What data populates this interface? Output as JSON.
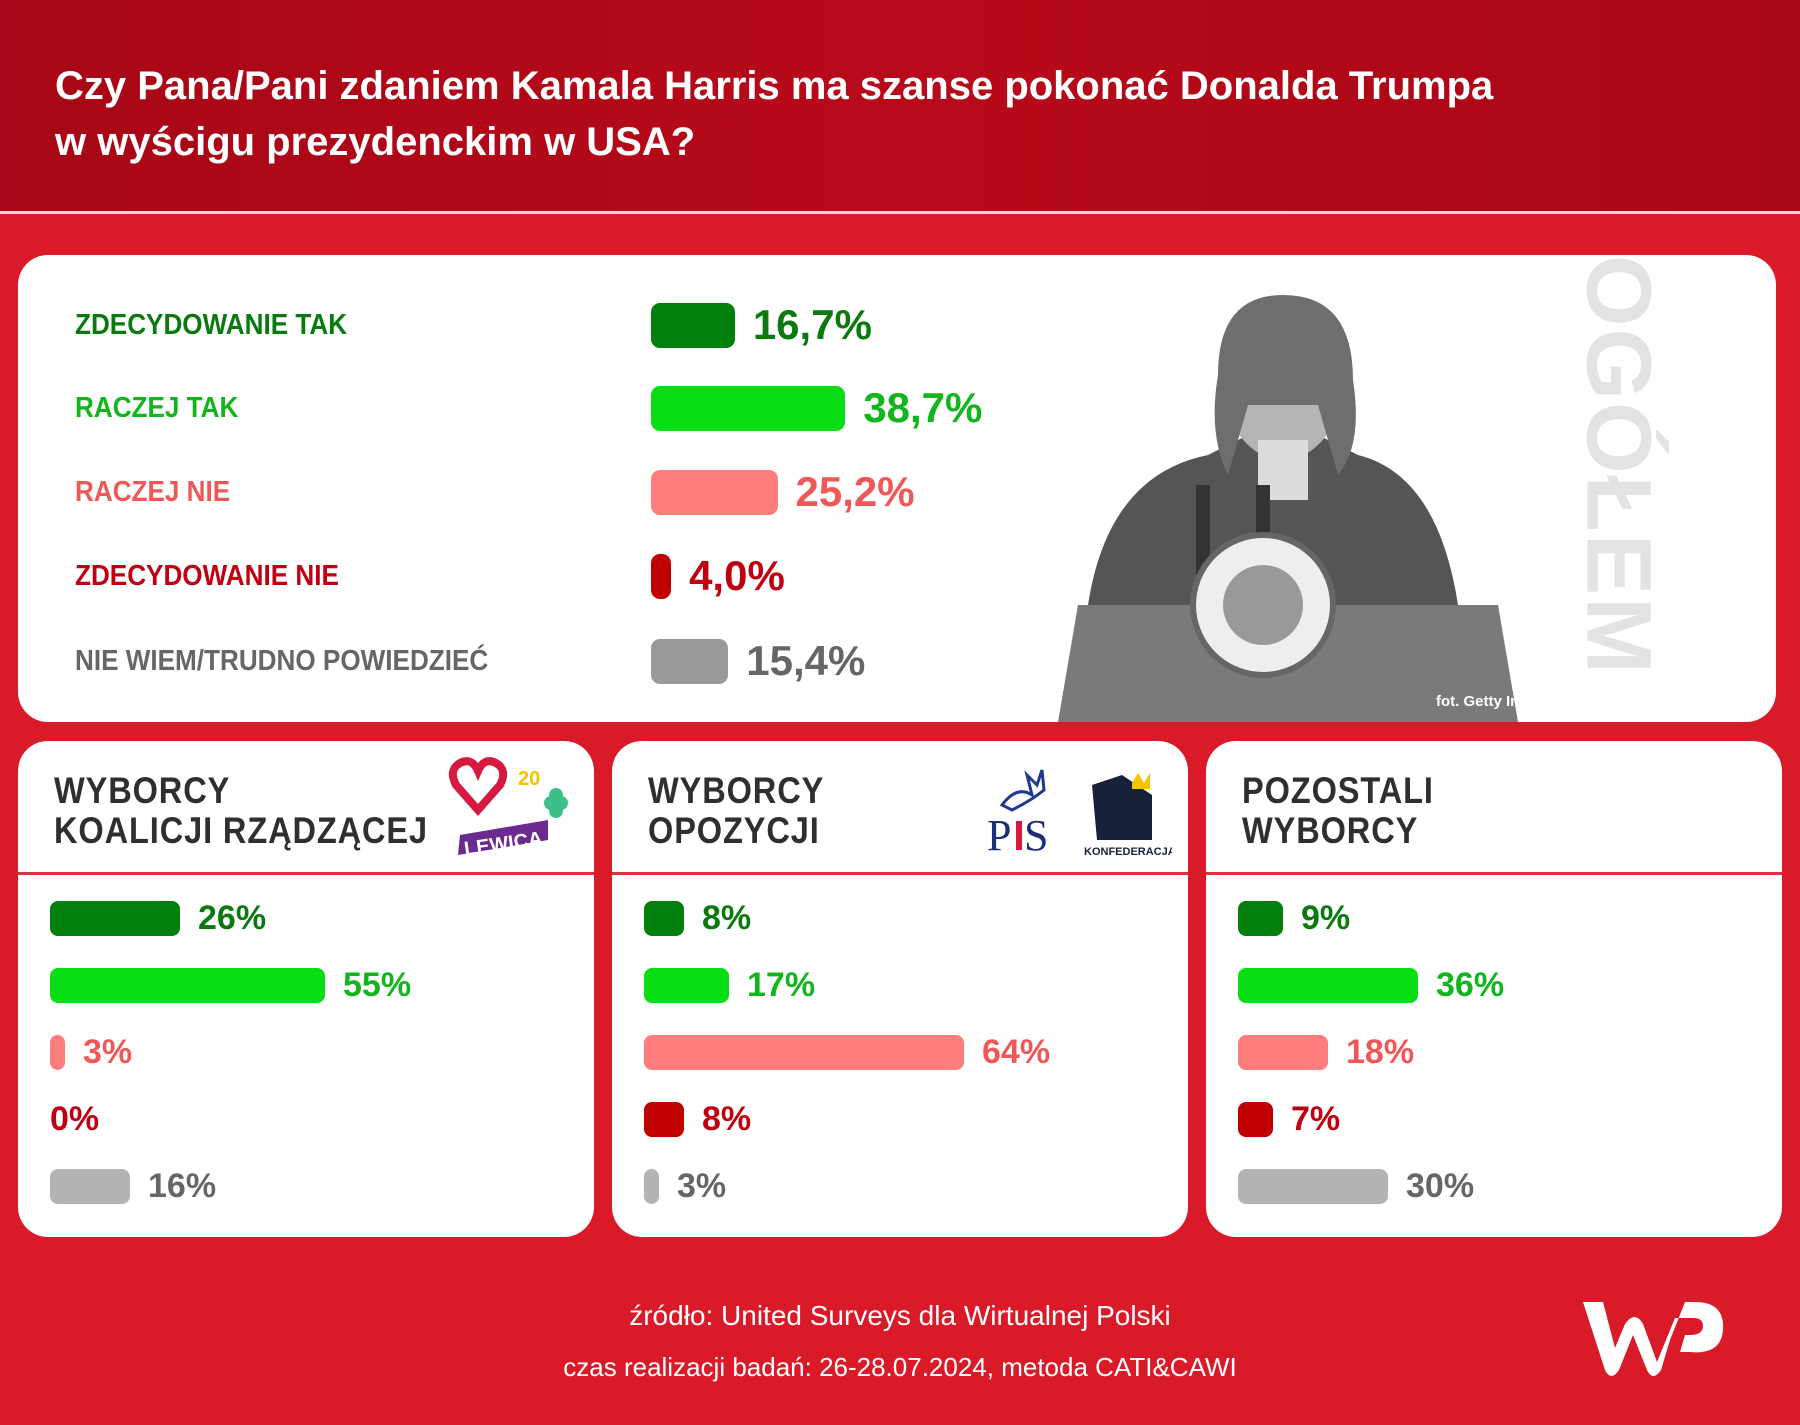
{
  "header": {
    "title_line1": "Czy Pana/Pani zdaniem Kamala Harris ma szanse pokonać Donalda Trumpa",
    "title_line2": "w wyścigu prezydenckim w USA?"
  },
  "top": {
    "side_label": "OGÓŁEM",
    "photo_credit": "fot. Getty Images"
  },
  "groups": [
    {
      "title_line1": "WYBORCY",
      "title_line2": "KOALICJI RZĄDZĄCEJ",
      "logo_text": "LEWICA"
    },
    {
      "title_line1": "WYBORCY",
      "title_line2": "OPOZYCJI",
      "logo_text": "PiS KONFEDERACJA"
    },
    {
      "title_line1": "POZOSTALI",
      "title_line2": "WYBORCY"
    }
  ],
  "footer": {
    "source": "źródło: United Surveys dla Wirtualnej Polski",
    "method": "czas realizacji badań: 26-28.07.2024, metoda CATI&CAWI",
    "logo_text": "WP"
  },
  "colors": {
    "bar": [
      "#037f0c",
      "#09dd14",
      "#ff7d7d",
      "#c00000",
      "#999999"
    ],
    "bar_small_gray": "#b4b4b4",
    "text": [
      "#0a7a0f",
      "#10b61b",
      "#f05858",
      "#c00010",
      "#666666"
    ],
    "background": "#d91b29",
    "header": "#b00a19"
  },
  "chart_data": [
    {
      "type": "bar",
      "orientation": "horizontal",
      "title": "OGÓŁEM",
      "categories": [
        "ZDECYDOWANIE TAK",
        "RACZEJ TAK",
        "RACZEJ NIE",
        "ZDECYDOWANIE NIE",
        "NIE WIEM/TRUDNO POWIEDZIEĆ"
      ],
      "values": [
        16.7,
        38.7,
        25.2,
        4.0,
        15.4
      ],
      "labels": [
        "16,7%",
        "38,7%",
        "25,2%",
        "4,0%",
        "15,4%"
      ]
    },
    {
      "type": "bar",
      "orientation": "horizontal",
      "title": "WYBORCY KOALICJI RZĄDZĄCEJ",
      "values": [
        26,
        55,
        3,
        0,
        16
      ],
      "labels": [
        "26%",
        "55%",
        "3%",
        "0%",
        "16%"
      ]
    },
    {
      "type": "bar",
      "orientation": "horizontal",
      "title": "WYBORCY OPOZYCJI",
      "values": [
        8,
        17,
        64,
        8,
        3
      ],
      "labels": [
        "8%",
        "17%",
        "64%",
        "8%",
        "3%"
      ]
    },
    {
      "type": "bar",
      "orientation": "horizontal",
      "title": "POZOSTALI WYBORCY",
      "values": [
        9,
        36,
        18,
        7,
        30
      ],
      "labels": [
        "9%",
        "36%",
        "18%",
        "7%",
        "30%"
      ]
    }
  ]
}
